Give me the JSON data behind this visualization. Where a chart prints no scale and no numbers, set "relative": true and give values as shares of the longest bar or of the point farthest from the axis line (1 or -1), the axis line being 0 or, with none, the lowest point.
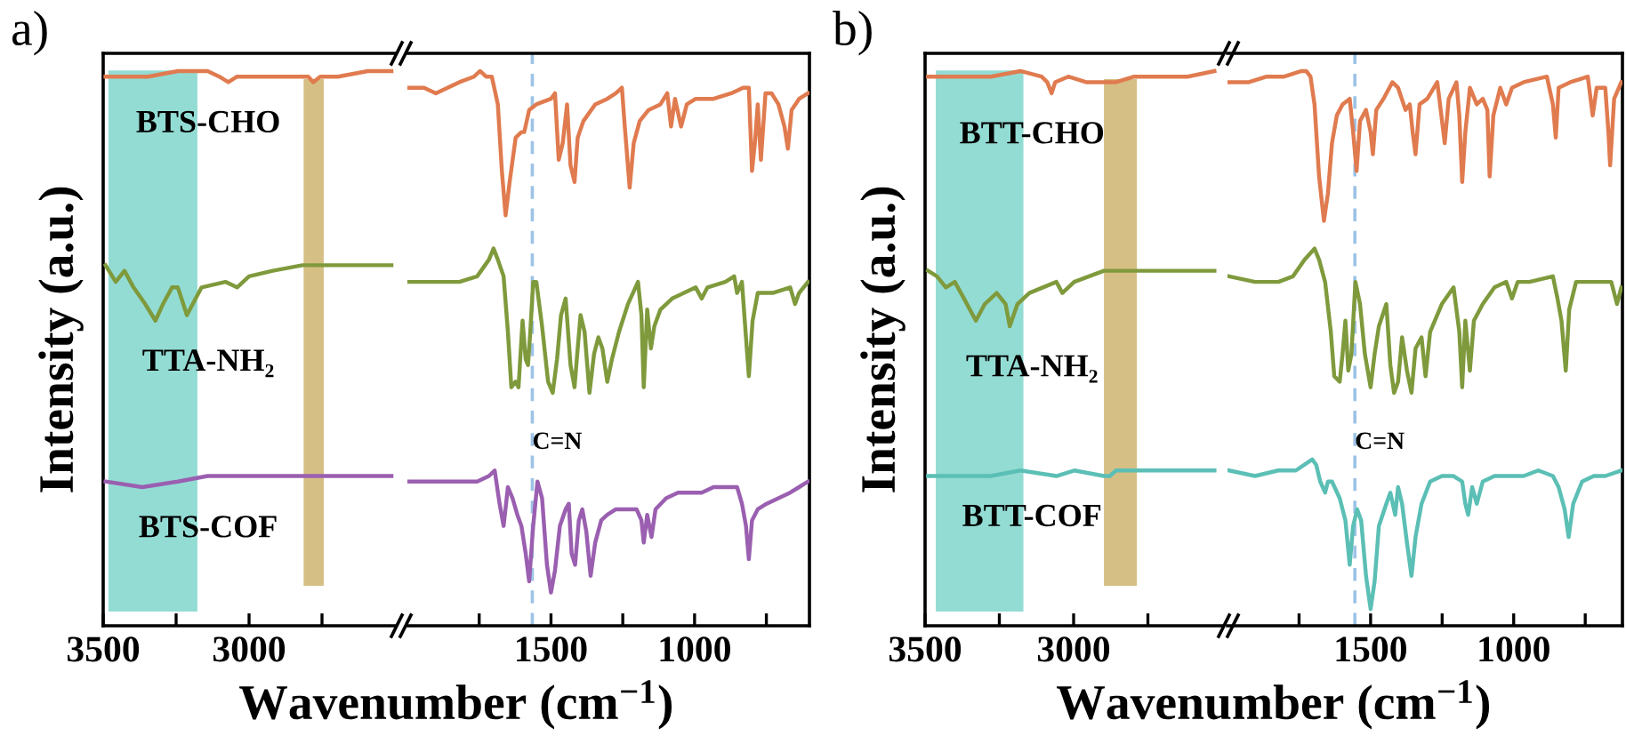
{
  "chart_data": [
    {
      "type": "line",
      "title": "a)",
      "ylabel": "Intensity (a.u.)",
      "xlabel": "Wavenumber (cm$^{−1}$)",
      "relative": true,
      "tick_labels": "x",
      "xlim": [
        3500,
        2500
      ],
      "xticks": [
        3500,
        {
          "value": 3250,
          "label": null
        },
        3000,
        {
          "value": 2750,
          "label": null
        }
      ],
      "bands": [
        {
          "axis": "x",
          "from": 3482,
          "to": 3177,
          "color": "#6fd0c6"
        },
        {
          "axis": "x",
          "from": 2813,
          "to": 2744,
          "color": "#c8aa5c"
        }
      ],
      "series": [
        {
          "name": "BTS-CHO",
          "color": "#e07b4f",
          "x": [
            3492,
            3346,
            3244,
            3142,
            3102,
            3071,
            3041,
            2939,
            2837,
            2797,
            2780,
            2756,
            2695,
            2593,
            2512
          ],
          "values": [
            0.99,
            0.99,
            1.0,
            1.0,
            0.99,
            0.98,
            0.99,
            0.99,
            0.99,
            0.99,
            0.98,
            0.99,
            0.99,
            1.0,
            1.0
          ]
        },
        {
          "name": "TTA-NH₂",
          "color": "#7f9a3c",
          "x": [
            3492,
            3457,
            3427,
            3396,
            3356,
            3321,
            3295,
            3264,
            3244,
            3213,
            3193,
            3163,
            3081,
            3041,
            3000,
            2919,
            2817,
            2715,
            2634,
            2512
          ],
          "values": [
            0.65,
            0.62,
            0.64,
            0.61,
            0.58,
            0.55,
            0.58,
            0.61,
            0.61,
            0.56,
            0.58,
            0.61,
            0.62,
            0.61,
            0.63,
            0.64,
            0.65,
            0.65,
            0.65,
            0.65
          ]
        },
        {
          "name": "BTS-COF",
          "color": "#9a5fb0",
          "x": [
            3492,
            3366,
            3244,
            3142,
            3041,
            2837,
            2634,
            2512
          ],
          "values": [
            0.26,
            0.25,
            0.26,
            0.27,
            0.27,
            0.27,
            0.27,
            0.27
          ]
        }
      ]
    },
    {
      "type": "line",
      "relative": true,
      "tick_labels": "x",
      "xlim": [
        2000,
        600
      ],
      "xticks": [
        {
          "value": 1750,
          "label": null
        },
        1500,
        {
          "value": 1250,
          "label": null
        },
        1000,
        {
          "value": 750,
          "label": null
        }
      ],
      "ref_lines": [
        {
          "axis": "x",
          "value": 1565,
          "label": "C=N",
          "color": "#9dc3e6",
          "line_style": "dashed"
        }
      ],
      "series": [
        {
          "color": "#e07b4f",
          "x": [
            2000,
            1942,
            1901,
            1860,
            1819,
            1768,
            1747,
            1726,
            1706,
            1685,
            1671,
            1658,
            1644,
            1623,
            1603,
            1593,
            1576,
            1551,
            1500,
            1486,
            1473,
            1459,
            1444,
            1432,
            1418,
            1407,
            1387,
            1346,
            1304,
            1274,
            1253,
            1243,
            1226,
            1212,
            1191,
            1160,
            1119,
            1095,
            1082,
            1068,
            1047,
            1027,
            996,
            934,
            872,
            831,
            811,
            800,
            790,
            780,
            769,
            753,
            732,
            708,
            687,
            675,
            662,
            636,
            605
          ],
          "values": [
            0.97,
            0.97,
            0.96,
            0.97,
            0.98,
            0.99,
            1.0,
            0.99,
            0.99,
            0.94,
            0.82,
            0.74,
            0.8,
            0.88,
            0.89,
            0.89,
            0.93,
            0.94,
            0.95,
            0.96,
            0.84,
            0.87,
            0.94,
            0.83,
            0.8,
            0.88,
            0.91,
            0.94,
            0.95,
            0.96,
            0.97,
            0.9,
            0.79,
            0.87,
            0.91,
            0.93,
            0.94,
            0.96,
            0.9,
            0.95,
            0.9,
            0.94,
            0.95,
            0.95,
            0.96,
            0.97,
            0.97,
            0.82,
            0.87,
            0.94,
            0.84,
            0.96,
            0.96,
            0.94,
            0.9,
            0.86,
            0.93,
            0.95,
            0.96
          ]
        },
        {
          "color": "#7f9a3c",
          "x": [
            2000,
            1901,
            1819,
            1757,
            1716,
            1700,
            1685,
            1665,
            1650,
            1638,
            1623,
            1613,
            1599,
            1588,
            1580,
            1572,
            1562,
            1551,
            1531,
            1510,
            1494,
            1479,
            1465,
            1449,
            1432,
            1418,
            1407,
            1397,
            1383,
            1366,
            1350,
            1335,
            1321,
            1304,
            1288,
            1263,
            1232,
            1197,
            1185,
            1177,
            1165,
            1152,
            1140,
            1119,
            1078,
            1037,
            996,
            975,
            955,
            893,
            862,
            852,
            835,
            821,
            811,
            798,
            780,
            728,
            667,
            650,
            636,
            605
          ],
          "values": [
            0.62,
            0.62,
            0.62,
            0.63,
            0.66,
            0.68,
            0.66,
            0.63,
            0.53,
            0.43,
            0.44,
            0.43,
            0.55,
            0.48,
            0.47,
            0.53,
            0.62,
            0.62,
            0.54,
            0.44,
            0.42,
            0.48,
            0.56,
            0.59,
            0.47,
            0.43,
            0.5,
            0.56,
            0.53,
            0.42,
            0.49,
            0.52,
            0.5,
            0.44,
            0.48,
            0.53,
            0.58,
            0.62,
            0.56,
            0.43,
            0.57,
            0.5,
            0.54,
            0.57,
            0.59,
            0.6,
            0.61,
            0.59,
            0.61,
            0.62,
            0.63,
            0.6,
            0.62,
            0.52,
            0.45,
            0.55,
            0.6,
            0.6,
            0.61,
            0.58,
            0.6,
            0.62
          ]
        },
        {
          "color": "#9a5fb0",
          "x": [
            2000,
            1901,
            1819,
            1757,
            1716,
            1696,
            1679,
            1665,
            1650,
            1634,
            1617,
            1603,
            1588,
            1576,
            1562,
            1547,
            1531,
            1514,
            1500,
            1486,
            1469,
            1449,
            1438,
            1428,
            1416,
            1403,
            1391,
            1377,
            1362,
            1346,
            1325,
            1304,
            1274,
            1243,
            1202,
            1185,
            1177,
            1165,
            1150,
            1136,
            1099,
            1058,
            1016,
            975,
            934,
            883,
            852,
            835,
            821,
            811,
            800,
            780,
            749,
            708,
            667,
            636,
            605
          ],
          "values": [
            0.26,
            0.26,
            0.26,
            0.26,
            0.27,
            0.28,
            0.22,
            0.18,
            0.25,
            0.23,
            0.2,
            0.18,
            0.13,
            0.08,
            0.18,
            0.26,
            0.23,
            0.11,
            0.06,
            0.1,
            0.18,
            0.21,
            0.22,
            0.13,
            0.11,
            0.19,
            0.21,
            0.17,
            0.09,
            0.15,
            0.19,
            0.2,
            0.21,
            0.21,
            0.21,
            0.19,
            0.15,
            0.2,
            0.16,
            0.21,
            0.23,
            0.24,
            0.24,
            0.24,
            0.25,
            0.25,
            0.25,
            0.22,
            0.18,
            0.12,
            0.19,
            0.21,
            0.22,
            0.23,
            0.24,
            0.25,
            0.26
          ]
        }
      ]
    },
    {
      "type": "line",
      "title": "b)",
      "ylabel": "Intensity (a.u.)",
      "xlabel": "Wavenumber (cm$^{−1}$)",
      "relative": true,
      "tick_labels": "x",
      "xlim": [
        3500,
        2500
      ],
      "xticks": [
        3500,
        {
          "value": 3250,
          "label": null
        },
        3000,
        {
          "value": 2750,
          "label": null
        }
      ],
      "bands": [
        {
          "axis": "x",
          "from": 3464,
          "to": 3169,
          "color": "#6fd0c6"
        },
        {
          "axis": "x",
          "from": 2898,
          "to": 2787,
          "color": "#c8aa5c"
        }
      ],
      "series": [
        {
          "name": "BTT-CHO",
          "color": "#e07b4f",
          "x": [
            3490,
            3360,
            3279,
            3179,
            3108,
            3089,
            3074,
            3062,
            3018,
            2958,
            2898,
            2857,
            2797,
            2717,
            2616,
            2526
          ],
          "values": [
            0.99,
            0.99,
            0.99,
            1.0,
            0.99,
            0.98,
            0.96,
            0.98,
            0.99,
            0.98,
            0.98,
            0.98,
            0.99,
            0.99,
            0.99,
            1.0
          ]
        },
        {
          "name": "TTA-NH₂",
          "color": "#7f9a3c",
          "x": [
            3490,
            3460,
            3430,
            3400,
            3369,
            3329,
            3299,
            3259,
            3229,
            3215,
            3189,
            3149,
            3058,
            3038,
            2998,
            2898,
            2757,
            2657,
            2526
          ],
          "values": [
            0.64,
            0.63,
            0.61,
            0.62,
            0.59,
            0.55,
            0.58,
            0.6,
            0.58,
            0.54,
            0.58,
            0.6,
            0.62,
            0.6,
            0.62,
            0.64,
            0.64,
            0.64,
            0.64
          ]
        },
        {
          "name": "BTT-COF",
          "color": "#5bbfb5",
          "x": [
            3490,
            3380,
            3279,
            3179,
            3058,
            2998,
            2898,
            2878,
            2857,
            2737,
            2526
          ],
          "values": [
            0.27,
            0.27,
            0.27,
            0.28,
            0.27,
            0.28,
            0.27,
            0.27,
            0.28,
            0.28,
            0.28
          ]
        }
      ]
    },
    {
      "type": "line",
      "relative": true,
      "tick_labels": "x",
      "xlim": [
        2000,
        620
      ],
      "xticks": [
        {
          "value": 1750,
          "label": null
        },
        1500,
        {
          "value": 1250,
          "label": null
        },
        1000,
        {
          "value": 750,
          "label": null
        }
      ],
      "ref_lines": [
        {
          "axis": "x",
          "value": 1555,
          "label": "C=N",
          "color": "#9dc3e6",
          "line_style": "dashed"
        }
      ],
      "series": [
        {
          "color": "#e07b4f",
          "x": [
            1995,
            1925,
            1863,
            1802,
            1741,
            1725,
            1710,
            1696,
            1680,
            1663,
            1649,
            1635,
            1618,
            1598,
            1573,
            1561,
            1549,
            1537,
            1516,
            1500,
            1492,
            1480,
            1455,
            1424,
            1404,
            1378,
            1363,
            1353,
            1343,
            1329,
            1302,
            1267,
            1255,
            1241,
            1227,
            1200,
            1190,
            1180,
            1169,
            1153,
            1129,
            1108,
            1092,
            1084,
            1071,
            1047,
            1026,
            1006,
            965,
            884,
            863,
            853,
            843,
            802,
            741,
            724,
            710,
            680,
            669,
            663,
            649,
            624
          ],
          "values": [
            0.98,
            0.98,
            0.99,
            0.99,
            1.0,
            1.0,
            0.99,
            0.94,
            0.81,
            0.73,
            0.78,
            0.87,
            0.92,
            0.94,
            0.95,
            0.89,
            0.82,
            0.91,
            0.93,
            0.89,
            0.85,
            0.93,
            0.95,
            0.98,
            0.97,
            0.93,
            0.94,
            0.89,
            0.85,
            0.94,
            0.95,
            0.98,
            0.93,
            0.87,
            0.95,
            0.98,
            0.92,
            0.8,
            0.89,
            0.97,
            0.94,
            0.95,
            0.93,
            0.81,
            0.92,
            0.97,
            0.94,
            0.97,
            0.98,
            0.99,
            0.94,
            0.88,
            0.97,
            0.98,
            0.99,
            0.92,
            0.97,
            0.97,
            0.89,
            0.83,
            0.95,
            0.98
          ]
        },
        {
          "color": "#7f9a3c",
          "x": [
            1995,
            1904,
            1822,
            1771,
            1731,
            1696,
            1680,
            1659,
            1639,
            1627,
            1608,
            1598,
            1588,
            1578,
            1567,
            1553,
            1537,
            1520,
            1500,
            1486,
            1471,
            1445,
            1431,
            1418,
            1404,
            1390,
            1373,
            1357,
            1343,
            1322,
            1308,
            1292,
            1251,
            1210,
            1190,
            1180,
            1169,
            1153,
            1139,
            1108,
            1067,
            1026,
            1006,
            986,
            945,
            863,
            847,
            833,
            818,
            806,
            782,
            720,
            659,
            639,
            624
          ],
          "values": [
            0.63,
            0.62,
            0.62,
            0.63,
            0.66,
            0.68,
            0.66,
            0.62,
            0.53,
            0.45,
            0.44,
            0.49,
            0.55,
            0.46,
            0.49,
            0.62,
            0.58,
            0.49,
            0.43,
            0.49,
            0.54,
            0.58,
            0.47,
            0.42,
            0.44,
            0.52,
            0.46,
            0.42,
            0.5,
            0.52,
            0.45,
            0.53,
            0.58,
            0.61,
            0.53,
            0.43,
            0.55,
            0.46,
            0.55,
            0.58,
            0.61,
            0.62,
            0.59,
            0.62,
            0.62,
            0.63,
            0.59,
            0.55,
            0.46,
            0.57,
            0.62,
            0.62,
            0.62,
            0.58,
            0.61
          ]
        },
        {
          "color": "#5bbfb5",
          "x": [
            1995,
            1904,
            1822,
            1761,
            1704,
            1690,
            1676,
            1659,
            1649,
            1635,
            1608,
            1588,
            1573,
            1561,
            1547,
            1533,
            1516,
            1500,
            1486,
            1471,
            1445,
            1431,
            1414,
            1404,
            1390,
            1373,
            1357,
            1343,
            1322,
            1292,
            1251,
            1210,
            1180,
            1169,
            1159,
            1145,
            1129,
            1108,
            1067,
            1026,
            986,
            965,
            914,
            863,
            843,
            822,
            808,
            792,
            761,
            720,
            680,
            624
          ],
          "values": [
            0.28,
            0.27,
            0.28,
            0.28,
            0.3,
            0.29,
            0.26,
            0.24,
            0.26,
            0.26,
            0.23,
            0.19,
            0.11,
            0.18,
            0.21,
            0.19,
            0.09,
            0.03,
            0.08,
            0.18,
            0.22,
            0.24,
            0.2,
            0.25,
            0.22,
            0.15,
            0.09,
            0.16,
            0.22,
            0.26,
            0.27,
            0.27,
            0.26,
            0.22,
            0.2,
            0.25,
            0.22,
            0.26,
            0.27,
            0.27,
            0.27,
            0.27,
            0.28,
            0.27,
            0.25,
            0.21,
            0.16,
            0.22,
            0.26,
            0.27,
            0.27,
            0.28
          ]
        }
      ]
    }
  ]
}
